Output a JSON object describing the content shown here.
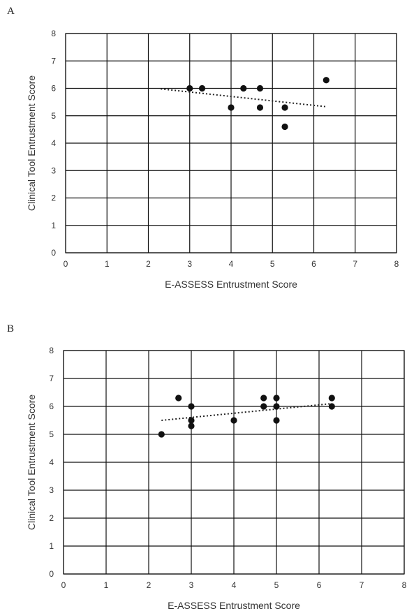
{
  "chart_data": [
    {
      "panel_label": "A",
      "type": "scatter",
      "title": "",
      "xlabel": "E-ASSESS Entrustment Score",
      "ylabel": "Clinical Tool Entrustment Score",
      "xlim": [
        0,
        8
      ],
      "ylim": [
        0,
        8
      ],
      "xticks": [
        "0",
        "1",
        "2",
        "3",
        "4",
        "5",
        "6",
        "7",
        "8"
      ],
      "yticks": [
        "0",
        "1",
        "2",
        "3",
        "4",
        "5",
        "6",
        "7",
        "8"
      ],
      "grid": true,
      "points": [
        {
          "x": 3.0,
          "y": 6.0
        },
        {
          "x": 3.3,
          "y": 6.0
        },
        {
          "x": 4.0,
          "y": 5.3
        },
        {
          "x": 4.3,
          "y": 6.0
        },
        {
          "x": 4.7,
          "y": 6.0
        },
        {
          "x": 4.7,
          "y": 5.3
        },
        {
          "x": 5.3,
          "y": 5.3
        },
        {
          "x": 5.3,
          "y": 4.6
        },
        {
          "x": 6.3,
          "y": 6.3
        }
      ],
      "trendline": {
        "type": "linear",
        "x": [
          2.3,
          6.3
        ],
        "y": [
          5.98,
          5.33
        ]
      }
    },
    {
      "panel_label": "B",
      "type": "scatter",
      "title": "",
      "xlabel": "E-ASSESS Entrustment Score",
      "ylabel": "Clinical Tool Entrustment Score",
      "xlim": [
        0,
        8
      ],
      "ylim": [
        0,
        8
      ],
      "xticks": [
        "0",
        "1",
        "2",
        "3",
        "4",
        "5",
        "6",
        "7",
        "8"
      ],
      "yticks": [
        "0",
        "1",
        "2",
        "3",
        "4",
        "5",
        "6",
        "7",
        "8"
      ],
      "grid": true,
      "points": [
        {
          "x": 2.3,
          "y": 5.0
        },
        {
          "x": 2.7,
          "y": 6.3
        },
        {
          "x": 3.0,
          "y": 6.0
        },
        {
          "x": 3.0,
          "y": 5.5
        },
        {
          "x": 3.0,
          "y": 5.3
        },
        {
          "x": 4.0,
          "y": 5.5
        },
        {
          "x": 4.7,
          "y": 6.3
        },
        {
          "x": 4.7,
          "y": 6.0
        },
        {
          "x": 5.0,
          "y": 6.3
        },
        {
          "x": 5.0,
          "y": 6.0
        },
        {
          "x": 5.0,
          "y": 5.5
        },
        {
          "x": 6.3,
          "y": 6.3
        },
        {
          "x": 6.3,
          "y": 6.0
        }
      ],
      "trendline": {
        "type": "linear",
        "x": [
          2.3,
          6.3
        ],
        "y": [
          5.5,
          6.1
        ]
      }
    }
  ]
}
